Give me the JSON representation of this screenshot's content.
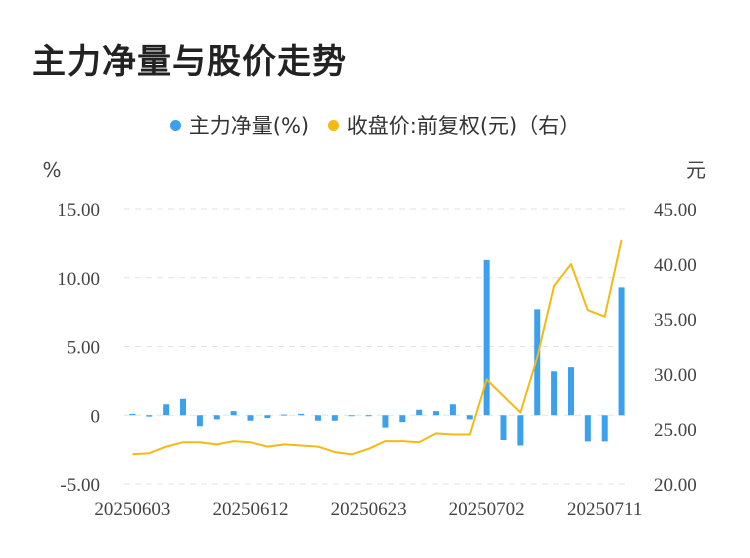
{
  "title": "主力净量与股价走势",
  "legend": [
    {
      "label": "主力净量(%)",
      "color": "#3ba0ee"
    },
    {
      "label": "收盘价:前复权(元)（右）",
      "color": "#f5b914"
    }
  ],
  "chart_data": {
    "type": "bar+line",
    "left_axis": {
      "unit": "%",
      "ticks": [
        "15.00",
        "10.00",
        "5.00",
        "0",
        "-5.00"
      ],
      "range": [
        -5,
        15
      ]
    },
    "right_axis": {
      "unit": "元",
      "ticks": [
        "45.00",
        "40.00",
        "35.00",
        "30.00",
        "25.00",
        "20.00"
      ],
      "range": [
        20,
        45
      ]
    },
    "x_tick_labels": [
      "20250603",
      "20250612",
      "20250623",
      "20250702",
      "20250711"
    ],
    "x_tick_indices": [
      0,
      7,
      14,
      21,
      28
    ],
    "grid": "horizontal dashed",
    "series": [
      {
        "name": "主力净量(%)",
        "type": "bar",
        "color": "#3ba0ee",
        "axis": "left",
        "values": [
          0.1,
          -0.1,
          0.8,
          1.2,
          -0.8,
          -0.3,
          0.3,
          -0.4,
          -0.2,
          0.05,
          0.1,
          -0.4,
          -0.4,
          -0.05,
          -0.05,
          -0.9,
          -0.5,
          0.4,
          0.3,
          0.8,
          -0.3,
          11.3,
          -1.8,
          -2.2,
          7.7,
          3.2,
          3.5,
          -1.9,
          -1.9,
          9.3
        ]
      },
      {
        "name": "收盘价:前复权(元)（右）",
        "type": "line",
        "color": "#f5b914",
        "axis": "right",
        "values": [
          22.7,
          22.8,
          23.4,
          23.8,
          23.8,
          23.6,
          23.9,
          23.8,
          23.4,
          23.6,
          23.5,
          23.4,
          22.9,
          22.7,
          23.2,
          23.9,
          23.9,
          23.8,
          24.6,
          24.5,
          24.5,
          29.5,
          28.0,
          26.5,
          31.5,
          38.0,
          40.0,
          35.8,
          35.2,
          42.2
        ]
      }
    ]
  }
}
